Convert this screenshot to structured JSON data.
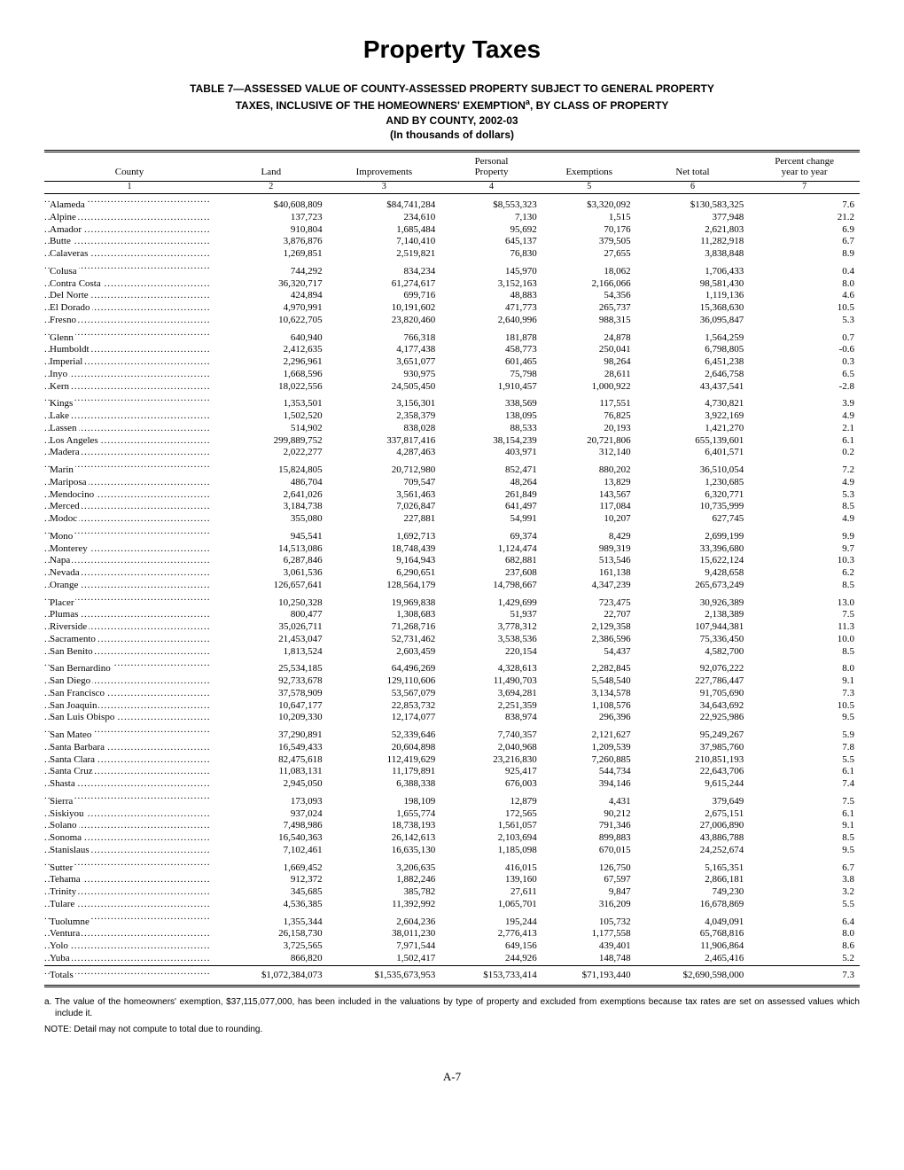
{
  "title": "Property Taxes",
  "subtitle_lines": [
    "TABLE 7—ASSESSED VALUE OF COUNTY-ASSESSED PROPERTY SUBJECT TO GENERAL PROPERTY",
    "TAXES, INCLUSIVE OF THE HOMEOWNERS' EXEMPTION<sup>a</sup>, BY CLASS OF PROPERTY",
    "AND BY COUNTY, 2002-03",
    "(In thousands of dollars)"
  ],
  "columns": [
    "County",
    "Land",
    "Improvements",
    "Personal Property",
    "Exemptions",
    "Net total",
    "Percent change year to year"
  ],
  "colnums": [
    "1",
    "2",
    "3",
    "4",
    "5",
    "6",
    "7"
  ],
  "groups": [
    [
      {
        "c": "Alameda",
        "v": [
          "$40,608,809",
          "$84,741,284",
          "$8,553,323",
          "$3,320,092",
          "$130,583,325",
          "7.6"
        ]
      },
      {
        "c": "Alpine",
        "v": [
          "137,723",
          "234,610",
          "7,130",
          "1,515",
          "377,948",
          "21.2"
        ]
      },
      {
        "c": "Amador",
        "v": [
          "910,804",
          "1,685,484",
          "95,692",
          "70,176",
          "2,621,803",
          "6.9"
        ]
      },
      {
        "c": "Butte",
        "v": [
          "3,876,876",
          "7,140,410",
          "645,137",
          "379,505",
          "11,282,918",
          "6.7"
        ]
      },
      {
        "c": "Calaveras",
        "v": [
          "1,269,851",
          "2,519,821",
          "76,830",
          "27,655",
          "3,838,848",
          "8.9"
        ]
      }
    ],
    [
      {
        "c": "Colusa",
        "v": [
          "744,292",
          "834,234",
          "145,970",
          "18,062",
          "1,706,433",
          "0.4"
        ]
      },
      {
        "c": "Contra Costa",
        "v": [
          "36,320,717",
          "61,274,617",
          "3,152,163",
          "2,166,066",
          "98,581,430",
          "8.0"
        ]
      },
      {
        "c": "Del Norte",
        "v": [
          "424,894",
          "699,716",
          "48,883",
          "54,356",
          "1,119,136",
          "4.6"
        ]
      },
      {
        "c": "El Dorado",
        "v": [
          "4,970,991",
          "10,191,602",
          "471,773",
          "265,737",
          "15,368,630",
          "10.5"
        ]
      },
      {
        "c": "Fresno",
        "v": [
          "10,622,705",
          "23,820,460",
          "2,640,996",
          "988,315",
          "36,095,847",
          "5.3"
        ]
      }
    ],
    [
      {
        "c": "Glenn",
        "v": [
          "640,940",
          "766,318",
          "181,878",
          "24,878",
          "1,564,259",
          "0.7"
        ]
      },
      {
        "c": "Humboldt",
        "v": [
          "2,412,635",
          "4,177,438",
          "458,773",
          "250,041",
          "6,798,805",
          "-0.6"
        ]
      },
      {
        "c": "Imperial",
        "v": [
          "2,296,961",
          "3,651,077",
          "601,465",
          "98,264",
          "6,451,238",
          "0.3"
        ]
      },
      {
        "c": "Inyo",
        "v": [
          "1,668,596",
          "930,975",
          "75,798",
          "28,611",
          "2,646,758",
          "6.5"
        ]
      },
      {
        "c": "Kern",
        "v": [
          "18,022,556",
          "24,505,450",
          "1,910,457",
          "1,000,922",
          "43,437,541",
          "-2.8"
        ]
      }
    ],
    [
      {
        "c": "Kings",
        "v": [
          "1,353,501",
          "3,156,301",
          "338,569",
          "117,551",
          "4,730,821",
          "3.9"
        ]
      },
      {
        "c": "Lake",
        "v": [
          "1,502,520",
          "2,358,379",
          "138,095",
          "76,825",
          "3,922,169",
          "4.9"
        ]
      },
      {
        "c": "Lassen",
        "v": [
          "514,902",
          "838,028",
          "88,533",
          "20,193",
          "1,421,270",
          "2.1"
        ]
      },
      {
        "c": "Los Angeles",
        "v": [
          "299,889,752",
          "337,817,416",
          "38,154,239",
          "20,721,806",
          "655,139,601",
          "6.1"
        ]
      },
      {
        "c": "Madera",
        "v": [
          "2,022,277",
          "4,287,463",
          "403,971",
          "312,140",
          "6,401,571",
          "0.2"
        ]
      }
    ],
    [
      {
        "c": "Marin",
        "v": [
          "15,824,805",
          "20,712,980",
          "852,471",
          "880,202",
          "36,510,054",
          "7.2"
        ]
      },
      {
        "c": "Mariposa",
        "v": [
          "486,704",
          "709,547",
          "48,264",
          "13,829",
          "1,230,685",
          "4.9"
        ]
      },
      {
        "c": "Mendocino",
        "v": [
          "2,641,026",
          "3,561,463",
          "261,849",
          "143,567",
          "6,320,771",
          "5.3"
        ]
      },
      {
        "c": "Merced",
        "v": [
          "3,184,738",
          "7,026,847",
          "641,497",
          "117,084",
          "10,735,999",
          "8.5"
        ]
      },
      {
        "c": "Modoc",
        "v": [
          "355,080",
          "227,881",
          "54,991",
          "10,207",
          "627,745",
          "4.9"
        ]
      }
    ],
    [
      {
        "c": "Mono",
        "v": [
          "945,541",
          "1,692,713",
          "69,374",
          "8,429",
          "2,699,199",
          "9.9"
        ]
      },
      {
        "c": "Monterey",
        "v": [
          "14,513,086",
          "18,748,439",
          "1,124,474",
          "989,319",
          "33,396,680",
          "9.7"
        ]
      },
      {
        "c": "Napa",
        "v": [
          "6,287,846",
          "9,164,943",
          "682,881",
          "513,546",
          "15,622,124",
          "10.3"
        ]
      },
      {
        "c": "Nevada",
        "v": [
          "3,061,536",
          "6,290,651",
          "237,608",
          "161,138",
          "9,428,658",
          "6.2"
        ]
      },
      {
        "c": "Orange",
        "v": [
          "126,657,641",
          "128,564,179",
          "14,798,667",
          "4,347,239",
          "265,673,249",
          "8.5"
        ]
      }
    ],
    [
      {
        "c": "Placer",
        "v": [
          "10,250,328",
          "19,969,838",
          "1,429,699",
          "723,475",
          "30,926,389",
          "13.0"
        ]
      },
      {
        "c": "Plumas",
        "v": [
          "800,477",
          "1,308,683",
          "51,937",
          "22,707",
          "2,138,389",
          "7.5"
        ]
      },
      {
        "c": "Riverside",
        "v": [
          "35,026,711",
          "71,268,716",
          "3,778,312",
          "2,129,358",
          "107,944,381",
          "11.3"
        ]
      },
      {
        "c": "Sacramento",
        "v": [
          "21,453,047",
          "52,731,462",
          "3,538,536",
          "2,386,596",
          "75,336,450",
          "10.0"
        ]
      },
      {
        "c": "San Benito",
        "v": [
          "1,813,524",
          "2,603,459",
          "220,154",
          "54,437",
          "4,582,700",
          "8.5"
        ]
      }
    ],
    [
      {
        "c": "San Bernardino",
        "v": [
          "25,534,185",
          "64,496,269",
          "4,328,613",
          "2,282,845",
          "92,076,222",
          "8.0"
        ]
      },
      {
        "c": "San Diego",
        "v": [
          "92,733,678",
          "129,110,606",
          "11,490,703",
          "5,548,540",
          "227,786,447",
          "9.1"
        ]
      },
      {
        "c": "San Francisco",
        "v": [
          "37,578,909",
          "53,567,079",
          "3,694,281",
          "3,134,578",
          "91,705,690",
          "7.3"
        ]
      },
      {
        "c": "San Joaquin",
        "v": [
          "10,647,177",
          "22,853,732",
          "2,251,359",
          "1,108,576",
          "34,643,692",
          "10.5"
        ]
      },
      {
        "c": "San Luis Obispo",
        "v": [
          "10,209,330",
          "12,174,077",
          "838,974",
          "296,396",
          "22,925,986",
          "9.5"
        ]
      }
    ],
    [
      {
        "c": "San Mateo",
        "v": [
          "37,290,891",
          "52,339,646",
          "7,740,357",
          "2,121,627",
          "95,249,267",
          "5.9"
        ]
      },
      {
        "c": "Santa Barbara",
        "v": [
          "16,549,433",
          "20,604,898",
          "2,040,968",
          "1,209,539",
          "37,985,760",
          "7.8"
        ]
      },
      {
        "c": "Santa Clara",
        "v": [
          "82,475,618",
          "112,419,629",
          "23,216,830",
          "7,260,885",
          "210,851,193",
          "5.5"
        ]
      },
      {
        "c": "Santa Cruz",
        "v": [
          "11,083,131",
          "11,179,891",
          "925,417",
          "544,734",
          "22,643,706",
          "6.1"
        ]
      },
      {
        "c": "Shasta",
        "v": [
          "2,945,050",
          "6,388,338",
          "676,003",
          "394,146",
          "9,615,244",
          "7.4"
        ]
      }
    ],
    [
      {
        "c": "Sierra",
        "v": [
          "173,093",
          "198,109",
          "12,879",
          "4,431",
          "379,649",
          "7.5"
        ]
      },
      {
        "c": "Siskiyou",
        "v": [
          "937,024",
          "1,655,774",
          "172,565",
          "90,212",
          "2,675,151",
          "6.1"
        ]
      },
      {
        "c": "Solano",
        "v": [
          "7,498,986",
          "18,738,193",
          "1,561,057",
          "791,346",
          "27,006,890",
          "9.1"
        ]
      },
      {
        "c": "Sonoma",
        "v": [
          "16,540,363",
          "26,142,613",
          "2,103,694",
          "899,883",
          "43,886,788",
          "8.5"
        ]
      },
      {
        "c": "Stanislaus",
        "v": [
          "7,102,461",
          "16,635,130",
          "1,185,098",
          "670,015",
          "24,252,674",
          "9.5"
        ]
      }
    ],
    [
      {
        "c": "Sutter",
        "v": [
          "1,669,452",
          "3,206,635",
          "416,015",
          "126,750",
          "5,165,351",
          "6.7"
        ]
      },
      {
        "c": "Tehama",
        "v": [
          "912,372",
          "1,882,246",
          "139,160",
          "67,597",
          "2,866,181",
          "3.8"
        ]
      },
      {
        "c": "Trinity",
        "v": [
          "345,685",
          "385,782",
          "27,611",
          "9,847",
          "749,230",
          "3.2"
        ]
      },
      {
        "c": "Tulare",
        "v": [
          "4,536,385",
          "11,392,992",
          "1,065,701",
          "316,209",
          "16,678,869",
          "5.5"
        ]
      }
    ],
    [
      {
        "c": "Tuolumne",
        "v": [
          "1,355,344",
          "2,604,236",
          "195,244",
          "105,732",
          "4,049,091",
          "6.4"
        ]
      },
      {
        "c": "Ventura",
        "v": [
          "26,158,730",
          "38,011,230",
          "2,776,413",
          "1,177,558",
          "65,768,816",
          "8.0"
        ]
      },
      {
        "c": "Yolo",
        "v": [
          "3,725,565",
          "7,971,544",
          "649,156",
          "439,401",
          "11,906,864",
          "8.6"
        ]
      },
      {
        "c": "Yuba",
        "v": [
          "866,820",
          "1,502,417",
          "244,926",
          "148,748",
          "2,465,416",
          "5.2"
        ]
      }
    ]
  ],
  "totals": {
    "c": "Totals",
    "v": [
      "$1,072,384,073",
      "$1,535,673,953",
      "$153,733,414",
      "$71,193,440",
      "$2,690,598,000",
      "7.3"
    ]
  },
  "footnote_a": "a. The value of the homeowners' exemption, $37,115,077,000, has been included in the valuations by type of property and excluded from exemptions because tax rates are set on assessed values which include it.",
  "note": "NOTE: Detail may not compute to total due to rounding.",
  "pagenum": "A-7"
}
